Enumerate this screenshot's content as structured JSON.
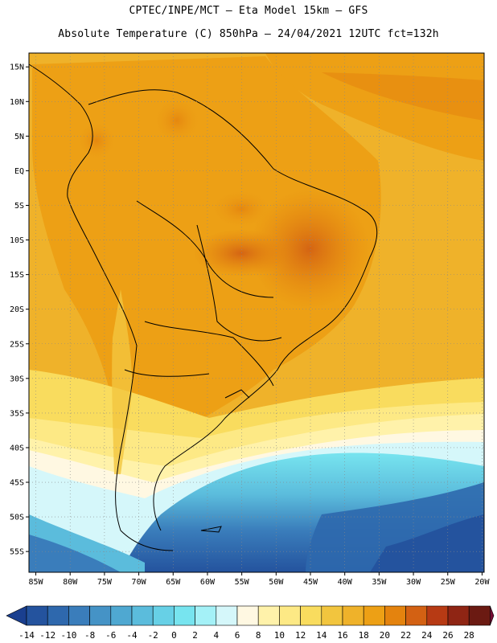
{
  "header": {
    "line1": "CPTEC/INPE/MCT –  Eta Model 15km – GFS",
    "line2": "Absolute Temperature (C) 850hPa – 24/04/2021 12UTC fct=132h"
  },
  "map": {
    "lat_labels": [
      "15N",
      "10N",
      "5N",
      "EQ",
      "5S",
      "10S",
      "15S",
      "20S",
      "25S",
      "30S",
      "35S",
      "40S",
      "45S",
      "50S",
      "55S"
    ],
    "lon_labels": [
      "85W",
      "80W",
      "75W",
      "70W",
      "65W",
      "60W",
      "55W",
      "50W",
      "45W",
      "40W",
      "35W",
      "30W",
      "25W",
      "20W"
    ]
  },
  "colorbar": {
    "labels": [
      "-14",
      "-12",
      "-10",
      "-8",
      "-6",
      "-4",
      "-2",
      "0",
      "2",
      "4",
      "6",
      "8",
      "10",
      "12",
      "14",
      "16",
      "18",
      "20",
      "22",
      "24",
      "26",
      "28"
    ],
    "colors": [
      "#1a3f8f",
      "#24539e",
      "#2e68ad",
      "#3a7dbb",
      "#4593c6",
      "#4fa8d1",
      "#5bbcdc",
      "#67d0e6",
      "#77e4ef",
      "#a4f1f7",
      "#d5f7fa",
      "#fff8e2",
      "#fff2aa",
      "#fde985",
      "#f9dc5e",
      "#f2c53e",
      "#efb22a",
      "#eda015",
      "#e4830e",
      "#d36113",
      "#b73a14",
      "#8f2514",
      "#6b1a12",
      "#760a33"
    ]
  }
}
